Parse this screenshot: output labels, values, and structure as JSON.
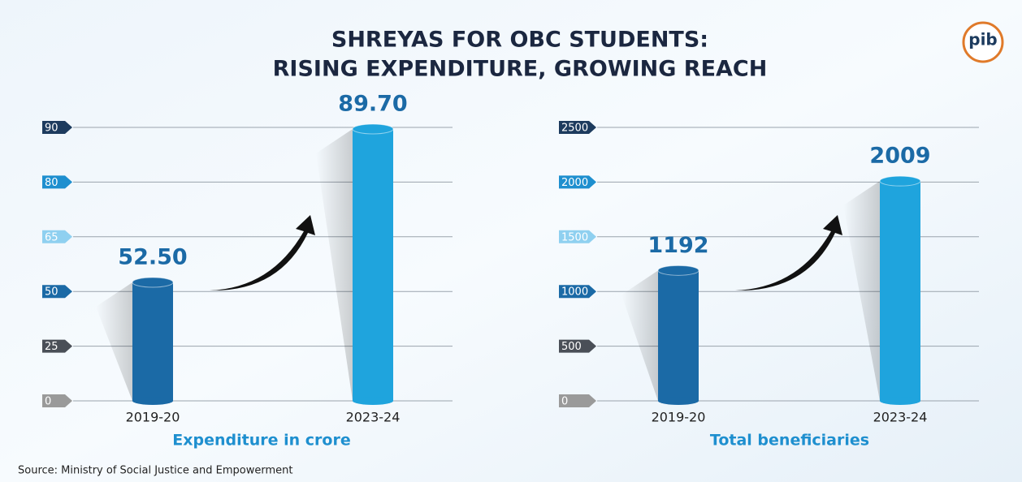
{
  "title": [
    "SHREYAS FOR OBC STUDENTS:",
    "RISING EXPENDITURE, GROWING REACH"
  ],
  "logo": "pib",
  "source": "Source: Ministry of Social Justice and Empowerment",
  "chart_data": [
    {
      "type": "bar",
      "x_label": "Expenditure in crore",
      "categories": [
        "2019-20",
        "2023-24"
      ],
      "values": [
        52.5,
        89.7
      ],
      "value_labels": [
        "52.50",
        "89.70"
      ],
      "colors": [
        "#1b6aa6",
        "#1fa4dd"
      ],
      "ylim": [
        0,
        90
      ],
      "yticks": [
        0,
        25,
        50,
        65,
        80,
        90
      ],
      "tick_colors": [
        "#9a9a9a",
        "#4a4f57",
        "#1b6aa6",
        "#8fd0f0",
        "#1e8fcf",
        "#1d3b5e"
      ],
      "grid": true
    },
    {
      "type": "bar",
      "x_label": "Total beneficiaries",
      "categories": [
        "2019-20",
        "2023-24"
      ],
      "values": [
        1192,
        2009
      ],
      "colors": [
        "#1b6aa6",
        "#1fa4dd"
      ],
      "ylim": [
        0,
        2500
      ],
      "yticks": [
        0,
        500,
        1000,
        1500,
        2000,
        2500
      ],
      "tick_colors": [
        "#9a9a9a",
        "#4a4f57",
        "#1b6aa6",
        "#8fd0f0",
        "#1e8fcf",
        "#1d3b5e"
      ],
      "grid": true
    }
  ]
}
